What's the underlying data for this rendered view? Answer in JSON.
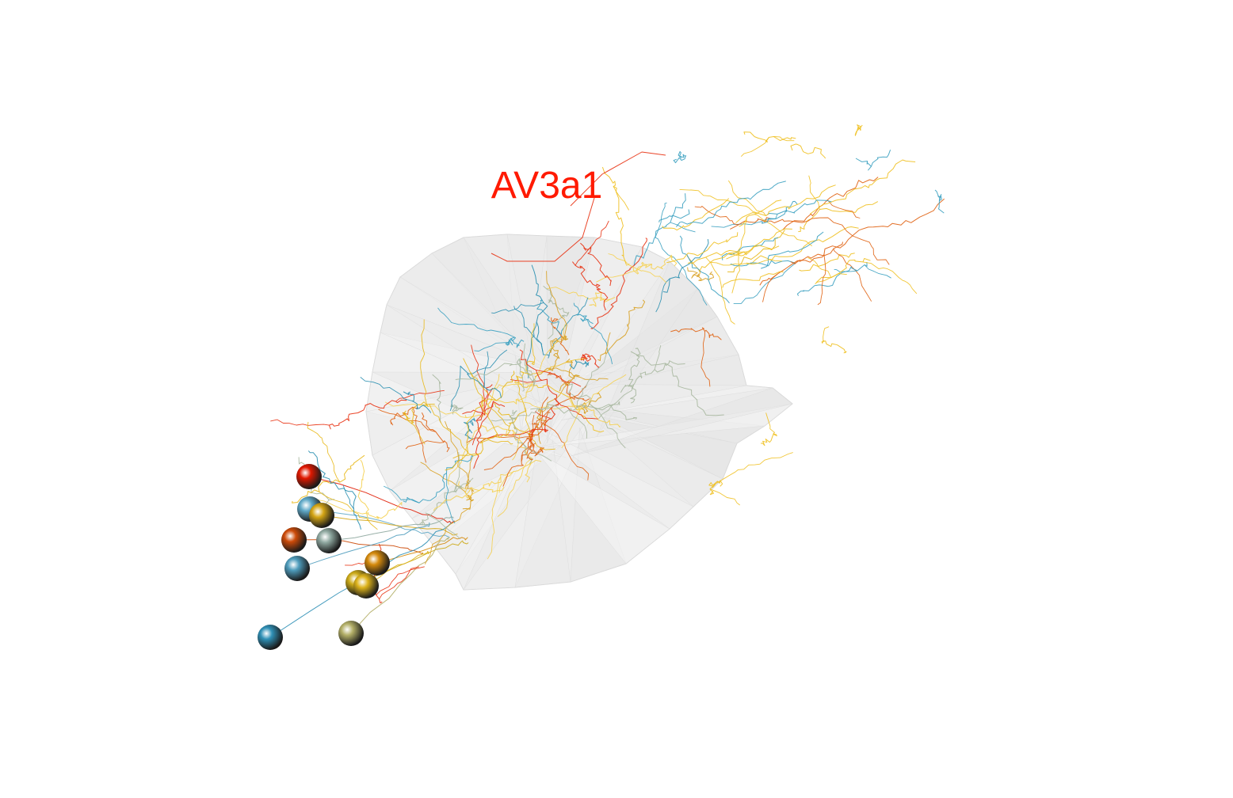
{
  "title": "AV3a1",
  "colors": {
    "background": "#ffffff",
    "title": "#ff1a00",
    "mesh_fill": "#e9e9e9",
    "mesh_stroke": "#d2d2d2",
    "palette": [
      "#f0c020",
      "#e8b818",
      "#d8a020",
      "#3aa0c0",
      "#2a8fb0",
      "#e83010",
      "#e06010",
      "#f5d050",
      "#a8b8a0"
    ]
  },
  "soma_colors": [
    "#e01800",
    "#5fa9c8",
    "#d4a514",
    "#cc4a08",
    "#8fa8a0",
    "#4e9cbc",
    "#d58a0c",
    "#ccaa18",
    "#dcb21a",
    "#2f90b6",
    "#b2ae66"
  ],
  "neuron_count": 11
}
